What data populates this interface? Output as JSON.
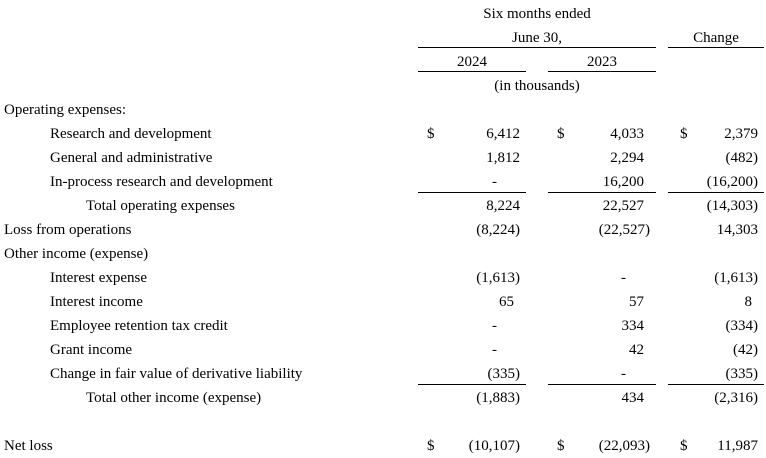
{
  "header": {
    "period_line1": "Six months ended",
    "period_line2": "June 30,",
    "change": "Change",
    "year1": "2024",
    "year2": "2023",
    "units": "(in thousands)"
  },
  "rows": {
    "operating_expenses": {
      "label": "Operating expenses:"
    },
    "rd": {
      "label": "Research and development",
      "d1": "$",
      "v1": "6,412",
      "d2": "$",
      "v2": "4,033",
      "d3": "$",
      "v3": "2,379"
    },
    "ga": {
      "label": "General and administrative",
      "v1": "1,812",
      "v2": "2,294",
      "v3": "(482)"
    },
    "iprd": {
      "label": "In-process research and development",
      "v1": "-",
      "v2": "16,200",
      "v3": "(16,200)"
    },
    "total_opex": {
      "label": "Total operating expenses",
      "v1": "8,224",
      "v2": "22,527",
      "v3": "(14,303)"
    },
    "loss_ops": {
      "label": "Loss from operations",
      "v1": "(8,224)",
      "v2": "(22,527)",
      "v3": "14,303"
    },
    "other": {
      "label": "Other income (expense)"
    },
    "int_exp": {
      "label": "Interest expense",
      "v1": "(1,613)",
      "v2": "-",
      "v3": "(1,613)"
    },
    "int_inc": {
      "label": "Interest income",
      "v1": "65",
      "v2": "57",
      "v3": "8"
    },
    "ertc": {
      "label": "Employee retention tax credit",
      "v1": "-",
      "v2": "334",
      "v3": "(334)"
    },
    "grant": {
      "label": "Grant income",
      "v1": "-",
      "v2": "42",
      "v3": "(42)"
    },
    "deriv": {
      "label": "Change in fair value of derivative liability",
      "v1": "(335)",
      "v2": "-",
      "v3": "(335)"
    },
    "total_other": {
      "label": "Total other income (expense)",
      "v1": "(1,883)",
      "v2": "434",
      "v3": "(2,316)"
    },
    "net_loss": {
      "label": "Net loss",
      "d1": "$",
      "v1": "(10,107)",
      "d2": "$",
      "v2": "(22,093)",
      "d3": "$",
      "v3": "11,987"
    }
  }
}
